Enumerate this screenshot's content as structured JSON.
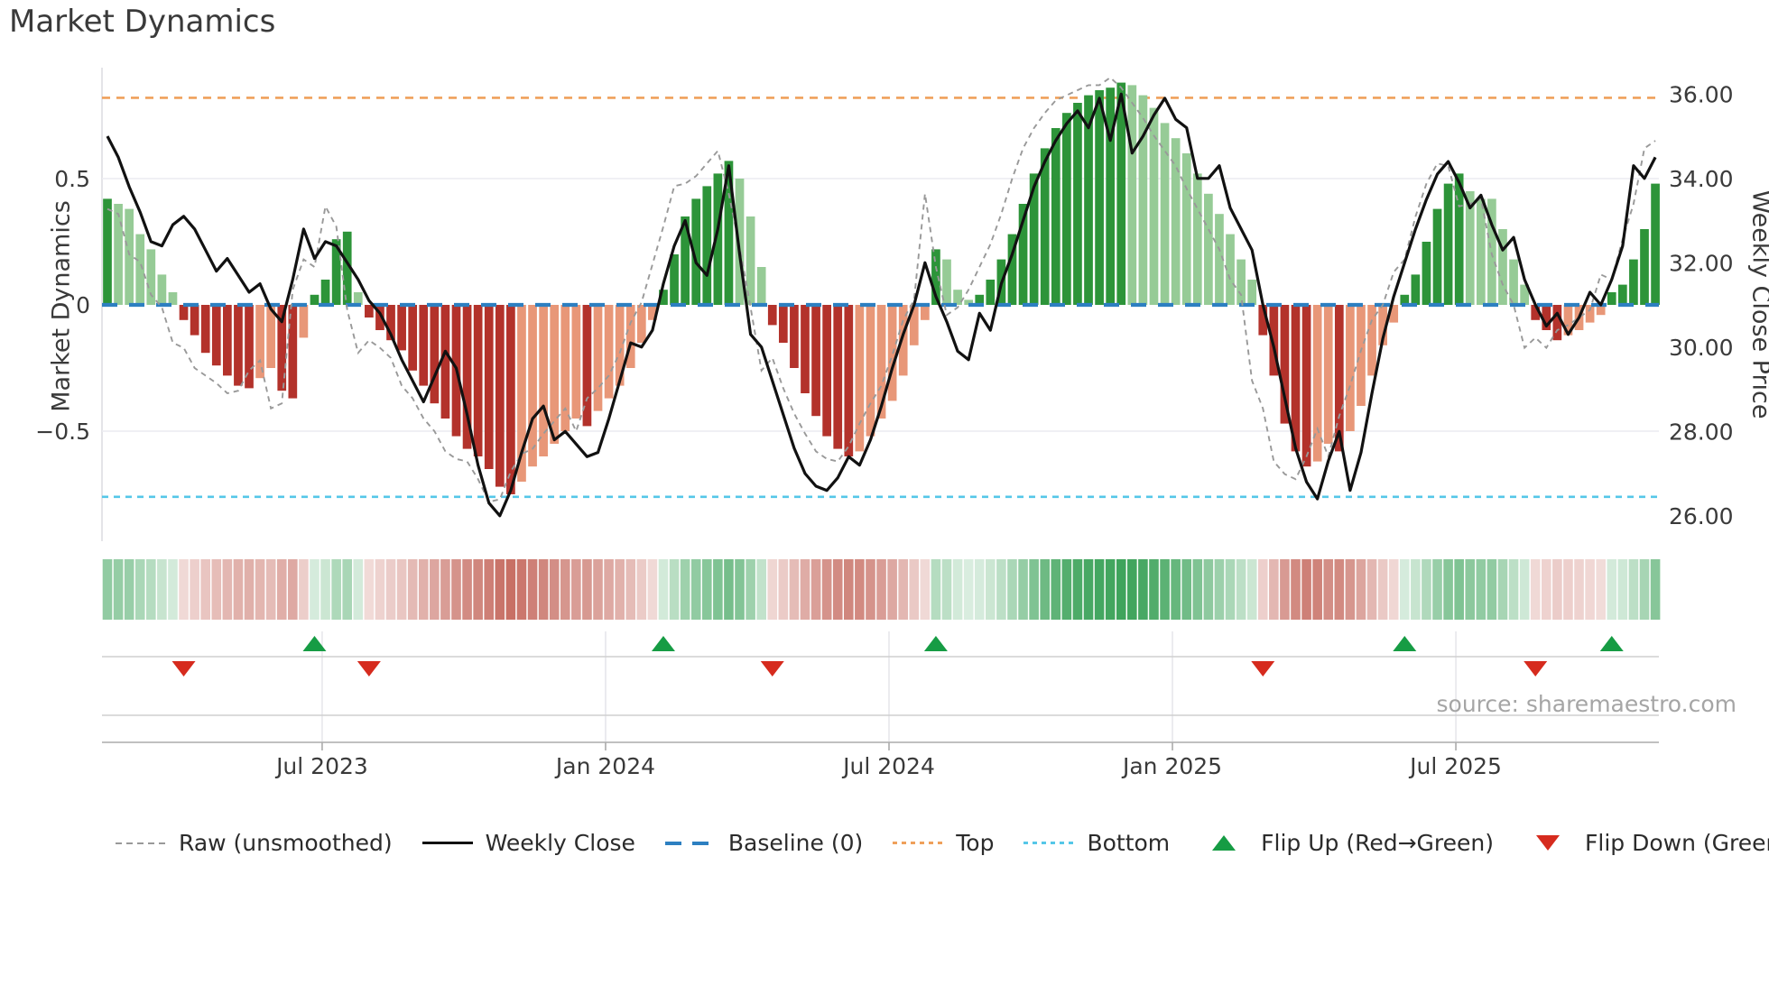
{
  "title": "Market Dynamics",
  "source_text": "source: sharemaestro.com",
  "left_axis": {
    "label": "Market Dynamics",
    "ticks": [
      "0.5",
      "0",
      "−0.5"
    ],
    "tick_values": [
      0.5,
      0,
      -0.5
    ]
  },
  "right_axis": {
    "label": "Weekly Close Price",
    "ticks": [
      "36.00",
      "34.00",
      "32.00",
      "30.00",
      "28.00",
      "26.00"
    ],
    "tick_values": [
      36,
      34,
      32,
      30,
      28,
      26
    ]
  },
  "x_axis": {
    "ticks": [
      "Jul 2023",
      "Jan 2024",
      "Jul 2024",
      "Jan 2025",
      "Jul 2025"
    ],
    "tick_weeks": [
      19.7,
      45.7,
      71.7,
      97.7,
      123.7
    ]
  },
  "legend": {
    "items": [
      {
        "key": "raw",
        "label": "Raw (unsmoothed)"
      },
      {
        "key": "close",
        "label": "Weekly Close"
      },
      {
        "key": "baseline",
        "label": "Baseline (0)"
      },
      {
        "key": "top",
        "label": "Top"
      },
      {
        "key": "bottom",
        "label": "Bottom"
      },
      {
        "key": "flip_up",
        "label": "Flip Up (Red→Green)"
      },
      {
        "key": "flip_down",
        "label": "Flip Down (Green→Red)"
      }
    ]
  },
  "chart_data": {
    "type": "combo",
    "x_unit": "week_index",
    "n_points": 143,
    "ylim_left": [
      -0.94,
      0.94
    ],
    "baseline": 0,
    "top_level": 0.82,
    "bottom_level": -0.76,
    "grid": "horizontal at 0.5 and -0.5; vertical in marker panel at date ticks",
    "legend_position": "bottom",
    "series": [
      {
        "name": "Smoothed oscillator (bars + heatmap)",
        "axis": "left",
        "values": [
          0.42,
          0.4,
          0.38,
          0.28,
          0.22,
          0.12,
          0.05,
          -0.06,
          -0.12,
          -0.19,
          -0.24,
          -0.28,
          -0.32,
          -0.33,
          -0.29,
          -0.25,
          -0.34,
          -0.37,
          -0.13,
          0.04,
          0.1,
          0.26,
          0.29,
          0.05,
          -0.05,
          -0.1,
          -0.14,
          -0.18,
          -0.26,
          -0.32,
          -0.39,
          -0.45,
          -0.52,
          -0.57,
          -0.6,
          -0.65,
          -0.72,
          -0.75,
          -0.7,
          -0.64,
          -0.6,
          -0.55,
          -0.5,
          -0.45,
          -0.48,
          -0.42,
          -0.37,
          -0.32,
          -0.25,
          -0.15,
          -0.06,
          0.06,
          0.2,
          0.35,
          0.42,
          0.47,
          0.52,
          0.57,
          0.5,
          0.35,
          0.15,
          -0.08,
          -0.15,
          -0.25,
          -0.35,
          -0.44,
          -0.52,
          -0.57,
          -0.6,
          -0.58,
          -0.52,
          -0.45,
          -0.38,
          -0.28,
          -0.16,
          -0.06,
          0.22,
          0.18,
          0.06,
          0.02,
          0.04,
          0.1,
          0.18,
          0.28,
          0.4,
          0.52,
          0.62,
          0.7,
          0.76,
          0.8,
          0.83,
          0.85,
          0.86,
          0.88,
          0.87,
          0.83,
          0.78,
          0.72,
          0.66,
          0.6,
          0.52,
          0.44,
          0.36,
          0.28,
          0.18,
          0.1,
          -0.12,
          -0.28,
          -0.47,
          -0.58,
          -0.64,
          -0.62,
          -0.55,
          -0.58,
          -0.5,
          -0.4,
          -0.28,
          -0.16,
          -0.07,
          0.04,
          0.12,
          0.25,
          0.38,
          0.48,
          0.52,
          0.45,
          0.42,
          0.42,
          0.3,
          0.18,
          0.08,
          -0.06,
          -0.1,
          -0.14,
          -0.12,
          -0.1,
          -0.07,
          -0.04,
          0.05,
          0.08,
          0.18,
          0.3,
          0.48
        ]
      },
      {
        "name": "Raw (unsmoothed)",
        "axis": "left",
        "values": [
          0.38,
          0.36,
          0.2,
          0.17,
          0.04,
          -0.01,
          -0.15,
          -0.17,
          -0.25,
          -0.28,
          -0.31,
          -0.35,
          -0.34,
          -0.26,
          -0.22,
          -0.41,
          -0.39,
          0.06,
          0.18,
          0.15,
          0.39,
          0.31,
          -0.02,
          -0.19,
          -0.14,
          -0.17,
          -0.21,
          -0.32,
          -0.37,
          -0.45,
          -0.5,
          -0.58,
          -0.61,
          -0.62,
          -0.69,
          -0.78,
          -0.77,
          -0.66,
          -0.59,
          -0.57,
          -0.51,
          -0.46,
          -0.41,
          -0.5,
          -0.37,
          -0.33,
          -0.28,
          -0.19,
          -0.07,
          0.01,
          0.16,
          0.31,
          0.47,
          0.48,
          0.51,
          0.56,
          0.61,
          0.44,
          0.23,
          -0.01,
          -0.26,
          -0.21,
          -0.33,
          -0.43,
          -0.51,
          -0.58,
          -0.61,
          -0.62,
          -0.56,
          -0.47,
          -0.39,
          -0.32,
          -0.2,
          -0.06,
          0.02,
          0.44,
          0.15,
          -0.04,
          -0.01,
          0.06,
          0.15,
          0.24,
          0.36,
          0.5,
          0.62,
          0.7,
          0.76,
          0.81,
          0.83,
          0.85,
          0.87,
          0.87,
          0.9,
          0.86,
          0.8,
          0.74,
          0.67,
          0.61,
          0.55,
          0.46,
          0.38,
          0.3,
          0.22,
          0.1,
          0.04,
          -0.3,
          -0.41,
          -0.62,
          -0.67,
          -0.69,
          -0.6,
          -0.49,
          -0.6,
          -0.44,
          -0.32,
          -0.18,
          -0.06,
          0.0,
          0.13,
          0.18,
          0.35,
          0.48,
          0.56,
          0.55,
          0.39,
          0.4,
          0.42,
          0.2,
          0.08,
          0.0,
          -0.17,
          -0.13,
          -0.17,
          -0.1,
          -0.08,
          -0.05,
          -0.02,
          0.12,
          0.1,
          0.26,
          0.4,
          0.62,
          0.65
        ]
      },
      {
        "name": "Weekly Close",
        "axis": "right",
        "values": [
          35.0,
          34.5,
          33.8,
          33.2,
          32.5,
          32.4,
          32.9,
          33.1,
          32.8,
          32.3,
          31.8,
          32.1,
          31.7,
          31.3,
          31.5,
          30.9,
          30.6,
          31.6,
          32.8,
          32.1,
          32.5,
          32.4,
          32.0,
          31.6,
          31.1,
          30.8,
          30.3,
          29.7,
          29.2,
          28.7,
          29.3,
          29.9,
          29.5,
          28.4,
          27.2,
          26.3,
          26.0,
          26.6,
          27.5,
          28.3,
          28.6,
          27.8,
          28.0,
          27.7,
          27.4,
          27.5,
          28.3,
          29.2,
          30.1,
          30.0,
          30.4,
          31.5,
          32.4,
          33.0,
          32.0,
          31.7,
          32.8,
          34.3,
          32.2,
          30.3,
          30.0,
          29.2,
          28.4,
          27.6,
          27.0,
          26.7,
          26.6,
          26.9,
          27.4,
          27.2,
          27.8,
          28.6,
          29.5,
          30.3,
          31.0,
          32.0,
          31.2,
          30.6,
          29.9,
          29.7,
          30.8,
          30.4,
          31.5,
          32.2,
          33.0,
          33.8,
          34.4,
          34.9,
          35.3,
          35.6,
          35.2,
          35.9,
          34.9,
          36.0,
          34.6,
          35.0,
          35.5,
          35.9,
          35.4,
          35.2,
          34.0,
          34.0,
          34.3,
          33.3,
          32.8,
          32.3,
          31.0,
          30.0,
          28.8,
          27.6,
          26.8,
          26.4,
          27.3,
          28.0,
          26.6,
          27.5,
          28.9,
          30.2,
          31.2,
          32.0,
          32.8,
          33.5,
          34.1,
          34.4,
          33.9,
          33.3,
          33.6,
          32.9,
          32.3,
          32.6,
          31.6,
          31.0,
          30.5,
          30.8,
          30.3,
          30.7,
          31.3,
          31.0,
          31.6,
          32.4,
          34.3,
          34.0,
          34.5
        ]
      }
    ],
    "flip_up_weeks": [
      19,
      51,
      76,
      119,
      138
    ],
    "flip_down_weeks": [
      7,
      24,
      61,
      106,
      131
    ],
    "heatmap": "full-height strip mirroring smoothed oscillator sign and magnitude",
    "colors": {
      "bar_pos_strong": "#2d9439",
      "bar_pos_weak": "#96cb96",
      "bar_neg_strong": "#b3322b",
      "bar_neg_weak": "#e89778",
      "heat_pos": "#3fa45c",
      "heat_neg": "#c05c50",
      "price_line": "#111111",
      "raw_line": "#999999",
      "baseline": "#2d7fc1",
      "top_line": "#efa05b",
      "bottom_line": "#55c7e8",
      "flip_up": "#169c44",
      "flip_down": "#d62b1e",
      "grid": "#ececf1",
      "spine": "#d9d9df",
      "panel_line": "#cfcfcf",
      "axis_line": "#ababab",
      "tick_text": "#3a3a3a",
      "source_text": "#a5a5a5"
    }
  }
}
